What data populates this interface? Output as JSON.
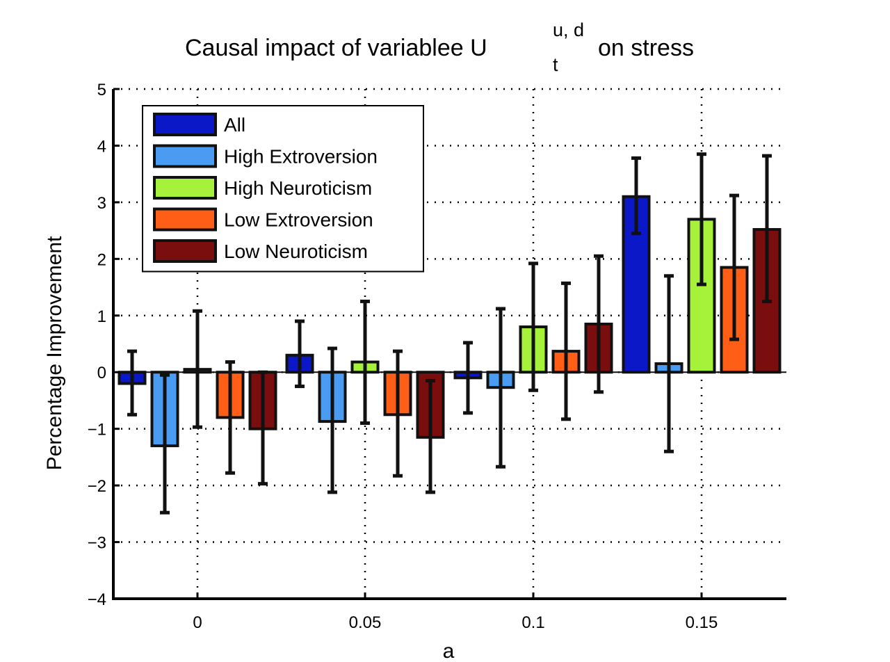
{
  "chart_data": {
    "type": "bar",
    "title": {
      "prefix": "Causal impact of variablee U",
      "superscript": "u, d",
      "subscript": "t",
      "suffix": "on stress"
    },
    "xlabel": "a",
    "ylabel": "Percentage Improvement",
    "categories": [
      "0",
      "0.05",
      "0.1",
      "0.15"
    ],
    "ylim": [
      -4,
      5
    ],
    "yticks": [
      -4,
      -3,
      -2,
      -1,
      0,
      1,
      2,
      3,
      4,
      5
    ],
    "ytick_labels": [
      "−4",
      "−3",
      "−2",
      "−1",
      "0",
      "1",
      "2",
      "3",
      "4",
      "5"
    ],
    "grid": true,
    "legend_position": "top-left",
    "series": [
      {
        "name": "All",
        "color": "#0a18c8",
        "values": [
          -0.2,
          0.3,
          -0.1,
          3.1
        ],
        "err_low": [
          -0.75,
          -0.25,
          -0.72,
          2.45
        ],
        "err_high": [
          0.37,
          0.9,
          0.52,
          3.78
        ]
      },
      {
        "name": "High Extroversion",
        "color": "#4a9cf2",
        "values": [
          -1.3,
          -0.87,
          -0.27,
          0.15
        ],
        "err_low": [
          -2.48,
          -2.12,
          -1.67,
          -1.4
        ],
        "err_high": [
          -0.05,
          0.42,
          1.12,
          1.7
        ]
      },
      {
        "name": "High Neuroticism",
        "color": "#a6f23a",
        "values": [
          0.05,
          0.18,
          0.8,
          2.7
        ],
        "err_low": [
          -0.97,
          -0.9,
          -0.32,
          1.55
        ],
        "err_high": [
          1.08,
          1.25,
          1.92,
          3.85
        ]
      },
      {
        "name": "Low Extroversion",
        "color": "#ff5e16",
        "values": [
          -0.8,
          -0.75,
          0.37,
          1.85
        ],
        "err_low": [
          -1.78,
          -1.83,
          -0.83,
          0.58
        ],
        "err_high": [
          0.18,
          0.37,
          1.57,
          3.12
        ]
      },
      {
        "name": "Low Neuroticism",
        "color": "#7a0d0d",
        "values": [
          -1.0,
          -1.15,
          0.85,
          2.52
        ],
        "err_low": [
          -1.97,
          -2.12,
          -0.35,
          1.25
        ],
        "err_high": [
          0.0,
          -0.15,
          2.05,
          3.82
        ]
      }
    ]
  }
}
